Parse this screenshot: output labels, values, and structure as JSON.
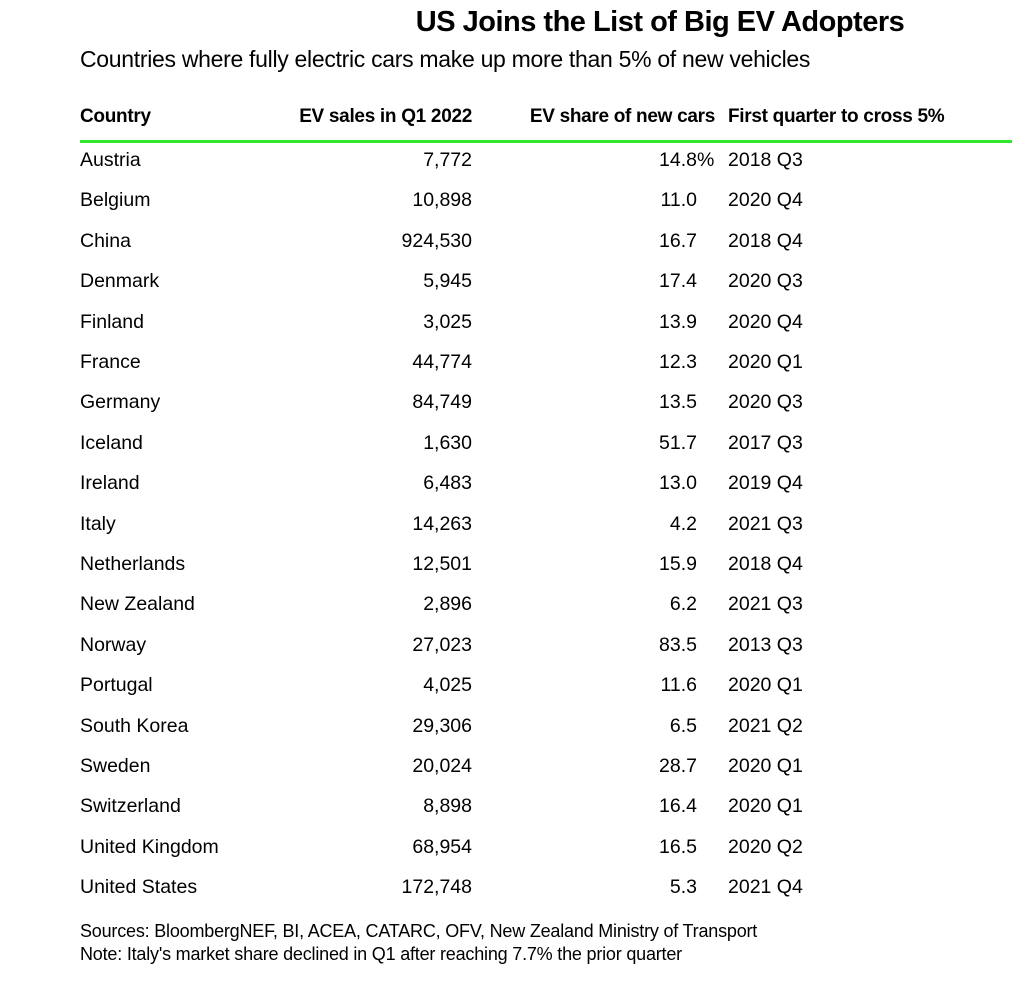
{
  "chart_data": {
    "type": "table",
    "title": "US Joins the List of Big EV Adopters",
    "subtitle": "Countries where fully electric cars make up more than 5% of new vehicles",
    "columns": [
      "Country",
      "EV sales in Q1 2022",
      "EV share of new cars",
      "First quarter to cross 5%"
    ],
    "rows": [
      [
        "Austria",
        "7,772",
        "14.8%",
        "2018 Q3"
      ],
      [
        "Belgium",
        "10,898",
        "11.0",
        "2020 Q4"
      ],
      [
        "China",
        "924,530",
        "16.7",
        "2018 Q4"
      ],
      [
        "Denmark",
        "5,945",
        "17.4",
        "2020 Q3"
      ],
      [
        "Finland",
        "3,025",
        "13.9",
        "2020 Q4"
      ],
      [
        "France",
        "44,774",
        "12.3",
        "2020 Q1"
      ],
      [
        "Germany",
        "84,749",
        "13.5",
        "2020 Q3"
      ],
      [
        "Iceland",
        "1,630",
        "51.7",
        "2017 Q3"
      ],
      [
        "Ireland",
        "6,483",
        "13.0",
        "2019 Q4"
      ],
      [
        "Italy",
        "14,263",
        "4.2",
        "2021 Q3"
      ],
      [
        "Netherlands",
        "12,501",
        "15.9",
        "2018 Q4"
      ],
      [
        "New Zealand",
        "2,896",
        "6.2",
        "2021 Q3"
      ],
      [
        "Norway",
        "27,023",
        "83.5",
        "2013 Q3"
      ],
      [
        "Portugal",
        "4,025",
        "11.6",
        "2020 Q1"
      ],
      [
        "South Korea",
        "29,306",
        "6.5",
        "2021 Q2"
      ],
      [
        "Sweden",
        "20,024",
        "28.7",
        "2020 Q1"
      ],
      [
        "Switzerland",
        "8,898",
        "16.4",
        "2020 Q1"
      ],
      [
        "United Kingdom",
        "68,954",
        "16.5",
        "2020 Q2"
      ],
      [
        "United States",
        "172,748",
        "5.3",
        "2021 Q4"
      ]
    ],
    "header_rule_color": "#2ee82e",
    "sources": "Sources: BloombergNEF, BI, ACEA, CATARC, OFV, New Zealand Ministry of Transport",
    "note": "Note: Italy's market share declined in Q1 after reaching 7.7% the prior quarter"
  }
}
